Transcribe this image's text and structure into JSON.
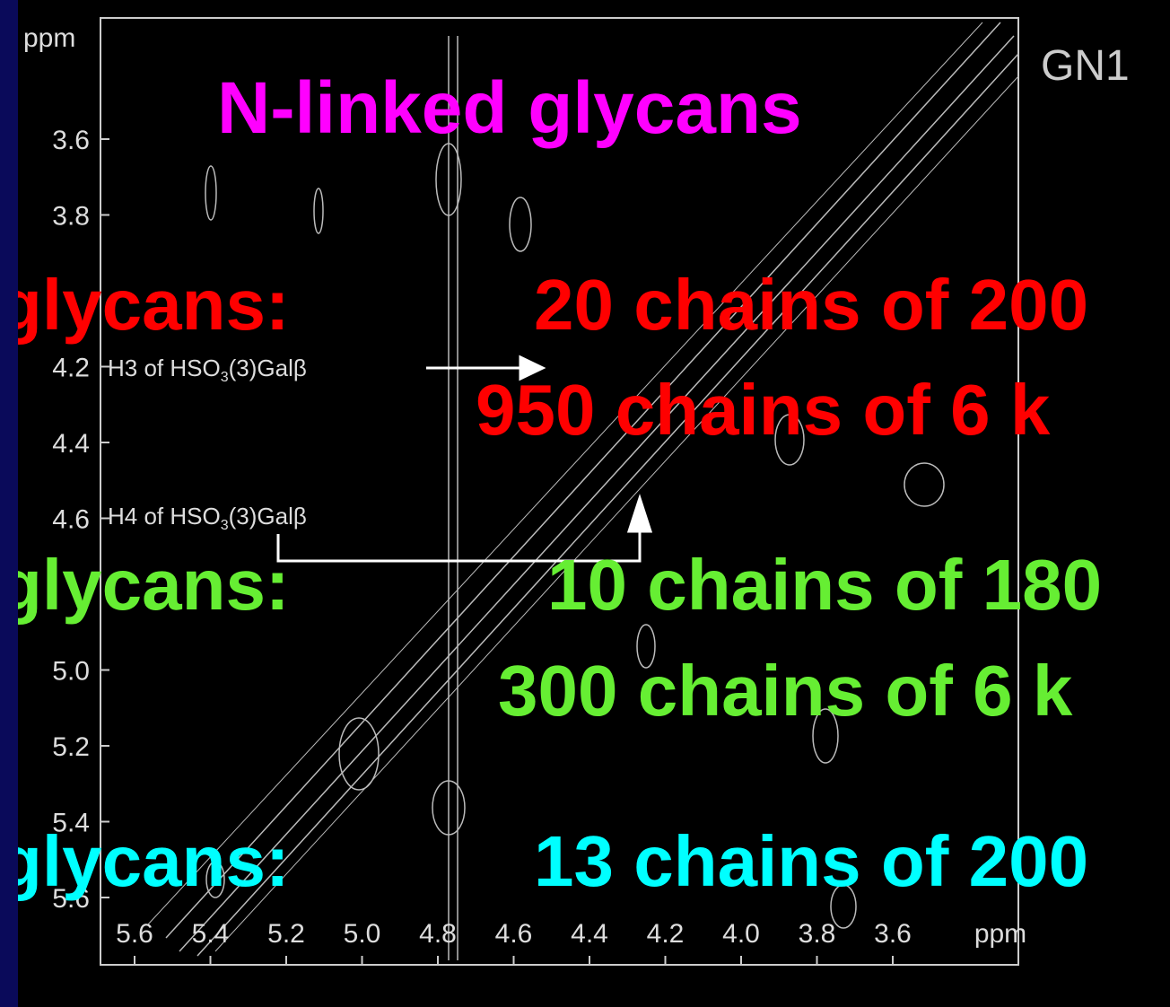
{
  "spectrum": {
    "y_axis": {
      "unit": "ppm",
      "labels": [
        "3.6",
        "3.8",
        "4.2",
        "4.4",
        "4.6",
        "5.0",
        "5.2",
        "5.4",
        "5.6"
      ]
    },
    "x_axis": {
      "unit": "ppm",
      "labels": [
        "5.6",
        "5.4",
        "5.2",
        "5.0",
        "4.8",
        "4.6",
        "4.4",
        "4.2",
        "4.0",
        "3.8",
        "3.6"
      ]
    },
    "annotations": [
      {
        "label": "H3 of HSO",
        "sub": "3",
        "rest": "(3)Galβ"
      },
      {
        "label": "H4 of HSO",
        "sub": "3",
        "rest": "(3)Galβ"
      }
    ],
    "corner_label": "GN1"
  },
  "title": "N-linked glycans",
  "rows": [
    {
      "label": "glycans:",
      "lines": [
        "20 chains of 200",
        "950 chains of 6 k"
      ]
    },
    {
      "label": "glycans:",
      "lines": [
        "10 chains of 180",
        "300 chains of 6 k"
      ]
    },
    {
      "label": "glycans:",
      "lines": [
        "13 chains of 200"
      ]
    }
  ]
}
